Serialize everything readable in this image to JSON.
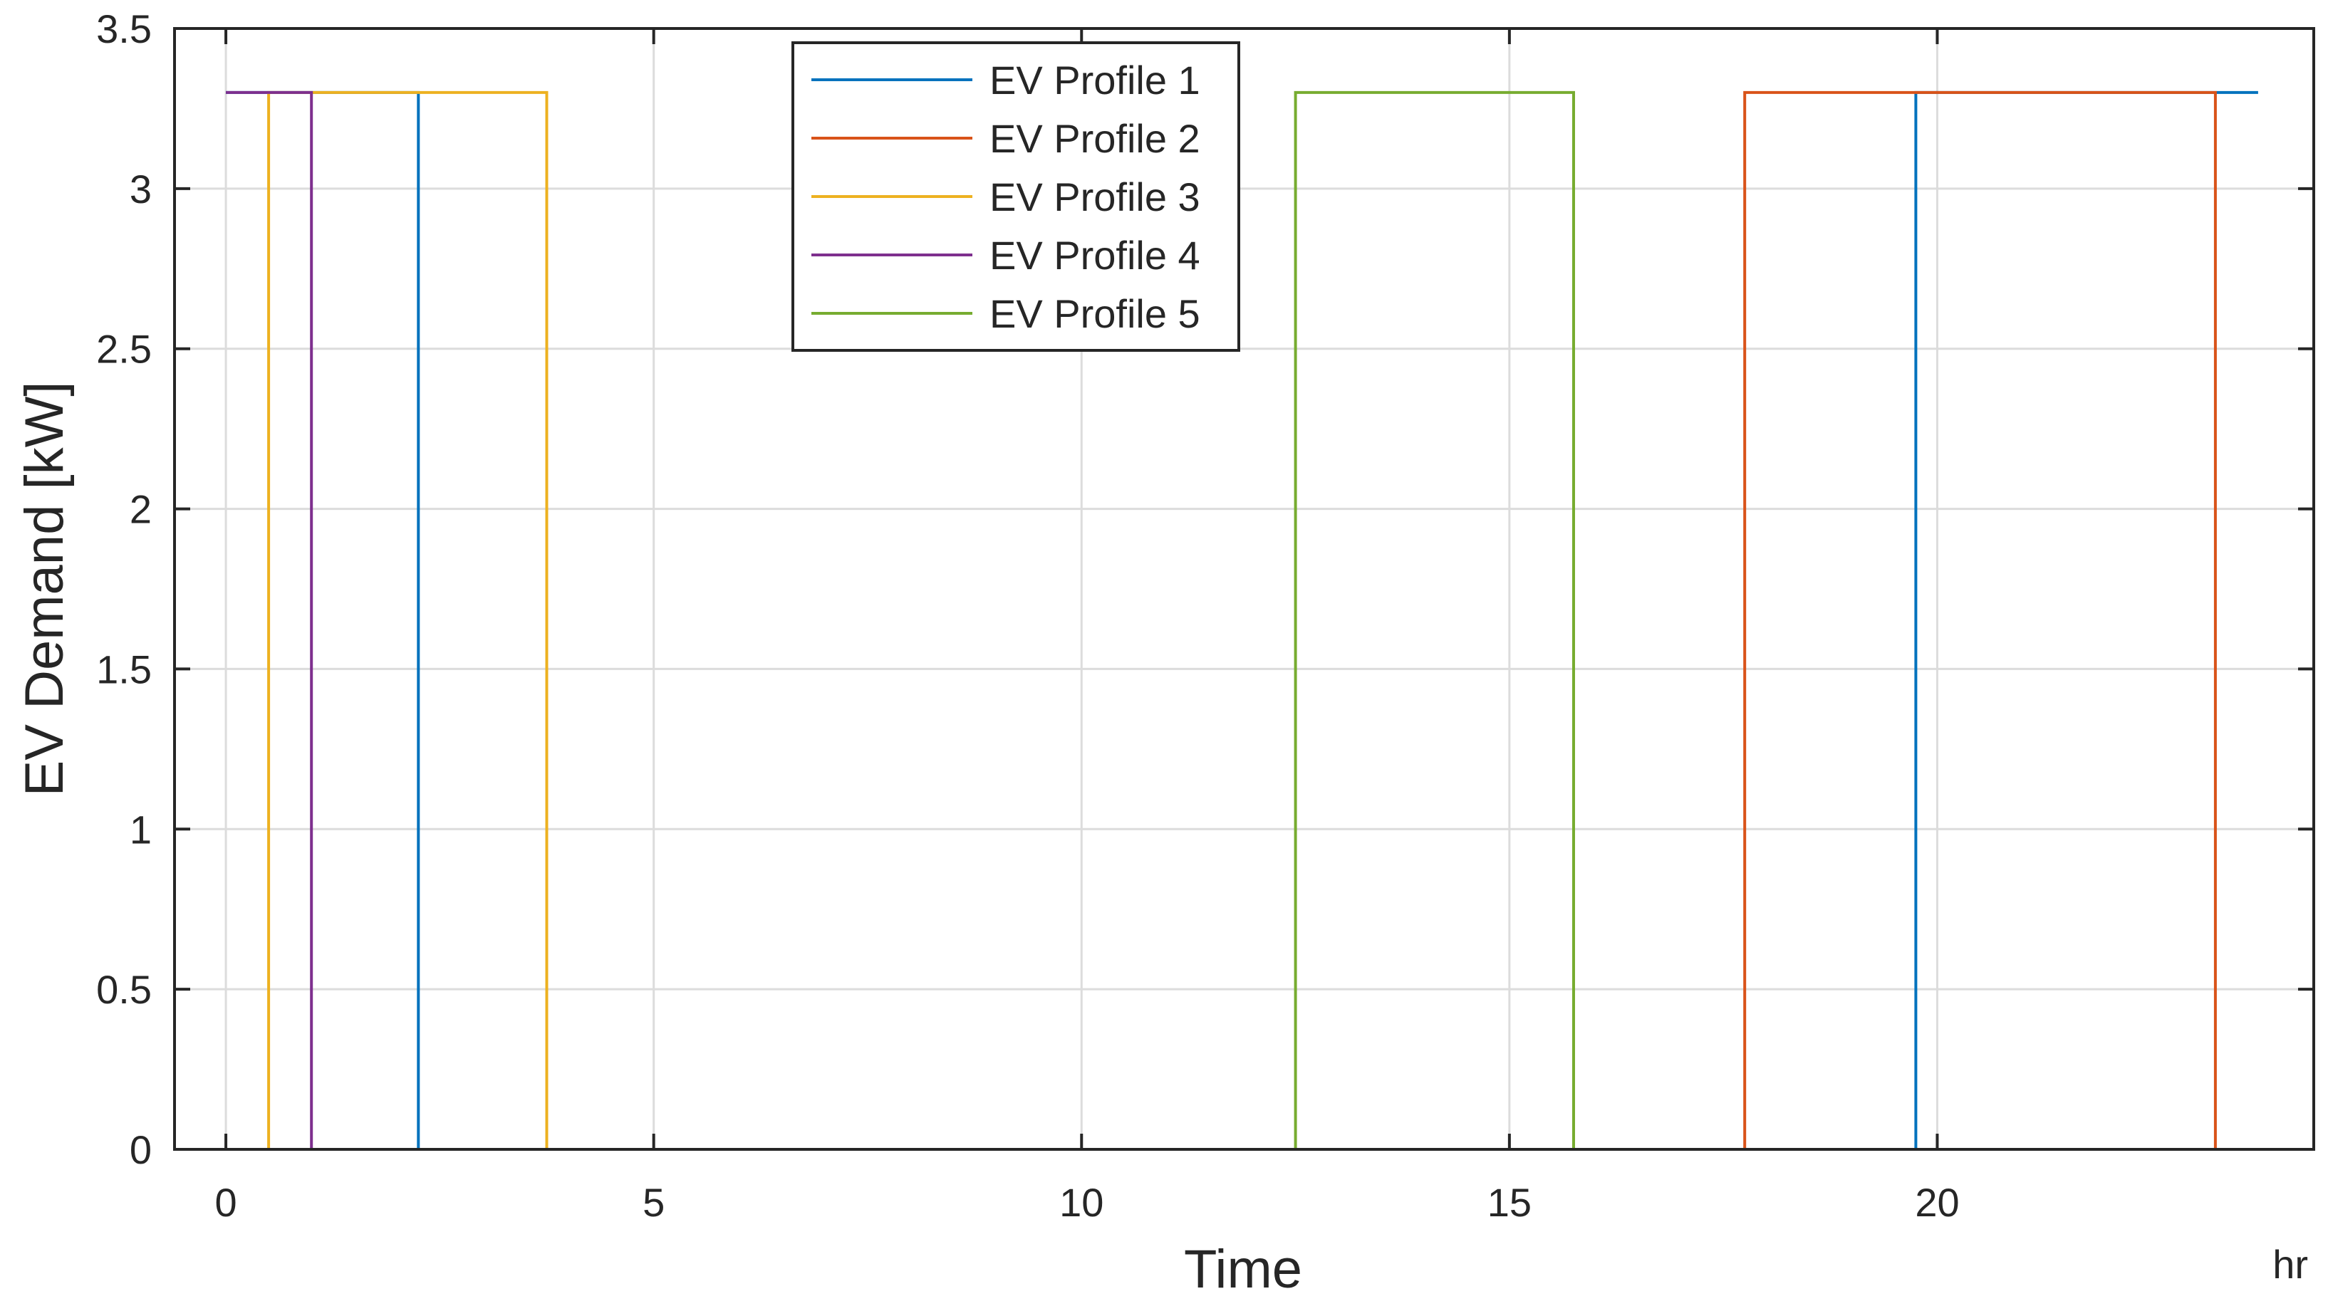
{
  "chart_data": {
    "type": "line",
    "title": "",
    "xlabel": "Time",
    "xunit": "hr",
    "ylabel": "EV Demand [kW]",
    "xlim": [
      -0.6,
      24.4
    ],
    "ylim": [
      0,
      3.5
    ],
    "xticks": [
      0,
      5,
      10,
      15,
      20
    ],
    "xtick_labels": [
      "0",
      "5",
      "10",
      "15",
      "20"
    ],
    "yticks": [
      0,
      0.5,
      1,
      1.5,
      2,
      2.5,
      3,
      3.5
    ],
    "ytick_labels": [
      "0",
      "0.5",
      "1",
      "1.5",
      "2",
      "2.5",
      "3",
      "3.5"
    ],
    "grid": true,
    "legend_position": "top-center",
    "series": [
      {
        "name": "EV Profile 1",
        "color": "#0072bd",
        "x": [
          0,
          2.25,
          2.25,
          19.75,
          19.75,
          23.75
        ],
        "y": [
          3.3,
          3.3,
          0,
          0,
          3.3,
          3.3
        ]
      },
      {
        "name": "EV Profile 2",
        "color": "#d95319",
        "x": [
          0,
          17.75,
          17.75,
          23.25,
          23.25,
          23.75
        ],
        "y": [
          0,
          0,
          3.3,
          3.3,
          0,
          0
        ]
      },
      {
        "name": "EV Profile 3",
        "color": "#edb120",
        "x": [
          0,
          0.5,
          0.5,
          3.75,
          3.75,
          23.75
        ],
        "y": [
          0,
          0,
          3.3,
          3.3,
          0,
          0
        ]
      },
      {
        "name": "EV Profile 4",
        "color": "#7e2f8e",
        "x": [
          0,
          1.0,
          1.0,
          23.75
        ],
        "y": [
          3.3,
          3.3,
          0,
          0
        ]
      },
      {
        "name": "EV Profile 5",
        "color": "#77ac30",
        "x": [
          0,
          12.5,
          12.5,
          15.75,
          15.75,
          23.75
        ],
        "y": [
          0,
          0,
          3.3,
          3.3,
          0,
          0
        ]
      }
    ]
  }
}
